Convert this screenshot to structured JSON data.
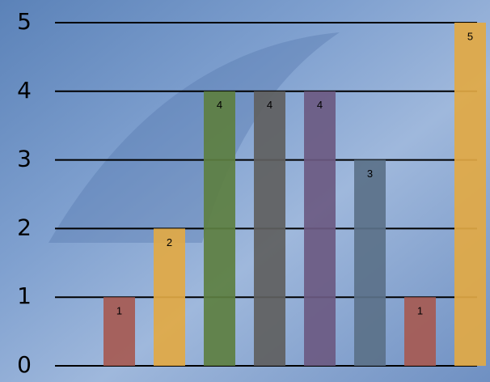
{
  "chart_data": {
    "type": "bar",
    "categories": [
      null,
      null,
      null,
      null,
      null,
      null,
      null,
      null
    ],
    "values": [
      1,
      2,
      4,
      4,
      4,
      3,
      1,
      5
    ],
    "colors": [
      "#a65a52",
      "#e2a944",
      "#5d7f41",
      "#5f5f5f",
      "#6b5a82",
      "#5b7189",
      "#a65a52",
      "#e2a944"
    ],
    "ylim": [
      0,
      5
    ],
    "yticks": [
      0,
      1,
      2,
      3,
      4,
      5
    ],
    "grid": true
  }
}
